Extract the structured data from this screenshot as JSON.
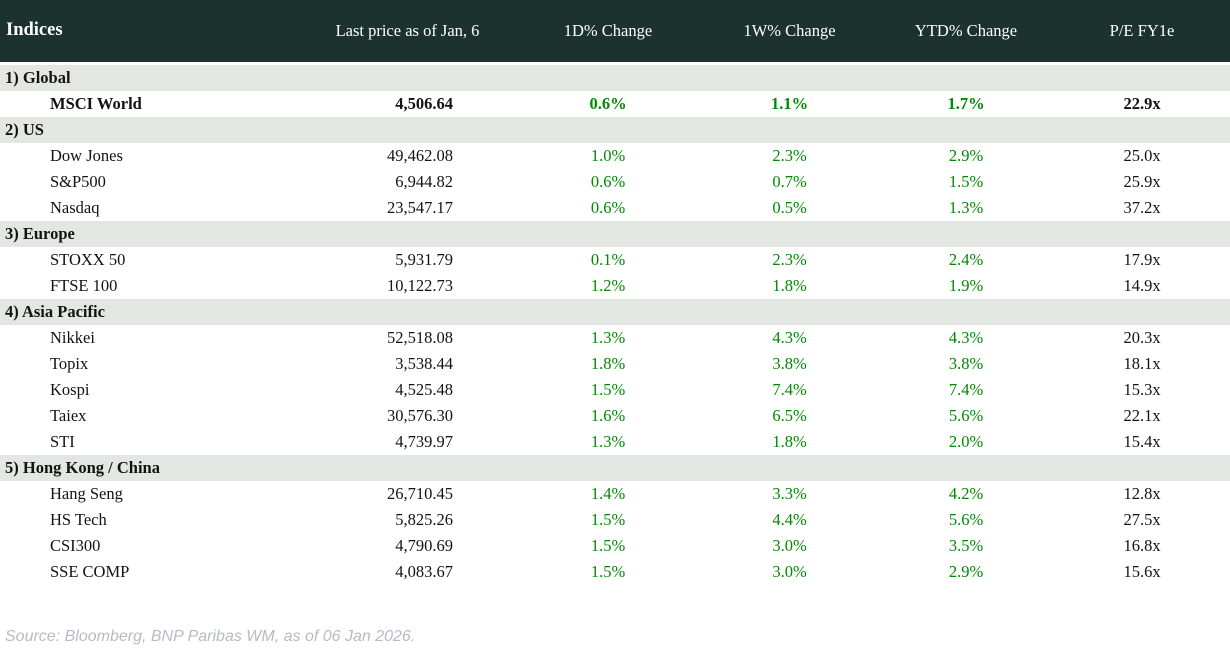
{
  "chart_data": {
    "type": "table",
    "title": "Indices",
    "columns": [
      "Indices",
      "Last price as of Jan, 6",
      "1D% Change",
      "1W% Change",
      "YTD% Change",
      "P/E FY1e"
    ],
    "sections": [
      {
        "label": "1) Global",
        "rows": [
          {
            "name": "MSCI World",
            "last_price": "4,506.64",
            "change_1d": "0.6%",
            "change_1w": "1.1%",
            "change_ytd": "1.7%",
            "pe_fy1e": "22.9x",
            "bold": true
          }
        ]
      },
      {
        "label": "2) US",
        "rows": [
          {
            "name": "Dow Jones",
            "last_price": "49,462.08",
            "change_1d": "1.0%",
            "change_1w": "2.3%",
            "change_ytd": "2.9%",
            "pe_fy1e": "25.0x",
            "bold": false
          },
          {
            "name": "S&P500",
            "last_price": "6,944.82",
            "change_1d": "0.6%",
            "change_1w": "0.7%",
            "change_ytd": "1.5%",
            "pe_fy1e": "25.9x",
            "bold": false
          },
          {
            "name": "Nasdaq",
            "last_price": "23,547.17",
            "change_1d": "0.6%",
            "change_1w": "0.5%",
            "change_ytd": "1.3%",
            "pe_fy1e": "37.2x",
            "bold": false
          }
        ]
      },
      {
        "label": "3) Europe",
        "rows": [
          {
            "name": "STOXX 50",
            "last_price": "5,931.79",
            "change_1d": "0.1%",
            "change_1w": "2.3%",
            "change_ytd": "2.4%",
            "pe_fy1e": "17.9x",
            "bold": false
          },
          {
            "name": "FTSE 100",
            "last_price": "10,122.73",
            "change_1d": "1.2%",
            "change_1w": "1.8%",
            "change_ytd": "1.9%",
            "pe_fy1e": "14.9x",
            "bold": false
          }
        ]
      },
      {
        "label": "4) Asia Pacific",
        "rows": [
          {
            "name": "Nikkei",
            "last_price": "52,518.08",
            "change_1d": "1.3%",
            "change_1w": "4.3%",
            "change_ytd": "4.3%",
            "pe_fy1e": "20.3x",
            "bold": false
          },
          {
            "name": "Topix",
            "last_price": "3,538.44",
            "change_1d": "1.8%",
            "change_1w": "3.8%",
            "change_ytd": "3.8%",
            "pe_fy1e": "18.1x",
            "bold": false
          },
          {
            "name": "Kospi",
            "last_price": "4,525.48",
            "change_1d": "1.5%",
            "change_1w": "7.4%",
            "change_ytd": "7.4%",
            "pe_fy1e": "15.3x",
            "bold": false
          },
          {
            "name": "Taiex",
            "last_price": "30,576.30",
            "change_1d": "1.6%",
            "change_1w": "6.5%",
            "change_ytd": "5.6%",
            "pe_fy1e": "22.1x",
            "bold": false
          },
          {
            "name": "STI",
            "last_price": "4,739.97",
            "change_1d": "1.3%",
            "change_1w": "1.8%",
            "change_ytd": "2.0%",
            "pe_fy1e": "15.4x",
            "bold": false
          }
        ]
      },
      {
        "label": "5) Hong Kong / China",
        "rows": [
          {
            "name": "Hang Seng",
            "last_price": "26,710.45",
            "change_1d": "1.4%",
            "change_1w": "3.3%",
            "change_ytd": "4.2%",
            "pe_fy1e": "12.8x",
            "bold": false
          },
          {
            "name": "HS Tech",
            "last_price": "5,825.26",
            "change_1d": "1.5%",
            "change_1w": "4.4%",
            "change_ytd": "5.6%",
            "pe_fy1e": "27.5x",
            "bold": false
          },
          {
            "name": "CSI300",
            "last_price": "4,790.69",
            "change_1d": "1.5%",
            "change_1w": "3.0%",
            "change_ytd": "3.5%",
            "pe_fy1e": "16.8x",
            "bold": false
          },
          {
            "name": "SSE COMP",
            "last_price": "4,083.67",
            "change_1d": "1.5%",
            "change_1w": "3.0%",
            "change_ytd": "2.9%",
            "pe_fy1e": "15.6x",
            "bold": false
          }
        ]
      }
    ],
    "layout": {
      "header_bg": "#1c332d",
      "section_row_bg": "#e2e7e3",
      "positive_change_color": "#008a00",
      "text_color": "#131313"
    }
  },
  "footer": {
    "source": "Source: Bloomberg, BNP Paribas WM, as of 06 Jan 2026."
  }
}
